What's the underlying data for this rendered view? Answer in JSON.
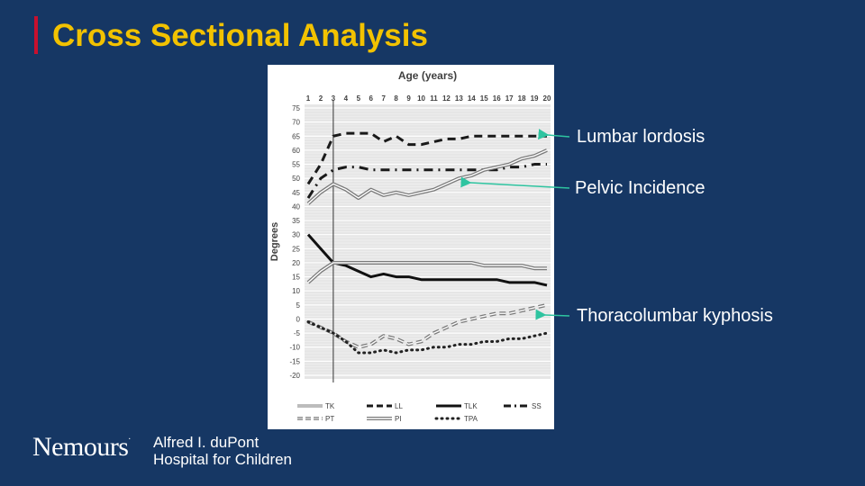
{
  "slide": {
    "title": "Cross Sectional Analysis",
    "accent_color": "#c8102e",
    "title_color": "#f2c200",
    "background": "#163764"
  },
  "callouts": [
    {
      "label": "Lumbar lordosis",
      "arrow_color": "#2ec4a0"
    },
    {
      "label": "Pelvic Incidence",
      "arrow_color": "#2ec4a0"
    },
    {
      "label": "Thoracolumbar kyphosis",
      "arrow_color": "#2ec4a0"
    }
  ],
  "logo": {
    "name": "Nemours",
    "trademark": ".",
    "line1": "Alfred I. duPont",
    "line2": "Hospital for Children"
  },
  "chart_data": {
    "type": "line",
    "title": "Age (years)",
    "xlabel": "Age (years)",
    "ylabel": "Degrees",
    "x": [
      1,
      2,
      3,
      4,
      5,
      6,
      7,
      8,
      9,
      10,
      11,
      12,
      13,
      14,
      15,
      16,
      17,
      18,
      19,
      20
    ],
    "xlim": [
      1,
      20
    ],
    "ylim": [
      -20,
      75
    ],
    "yticks": [
      75,
      70,
      65,
      60,
      55,
      50,
      45,
      40,
      35,
      30,
      25,
      20,
      15,
      10,
      5,
      0,
      -5,
      -10,
      -15,
      -20
    ],
    "grid": true,
    "reference_x": 3,
    "series": [
      {
        "name": "LL",
        "style": "dash",
        "values": [
          48,
          55,
          65,
          66,
          66,
          66,
          63,
          65,
          62,
          62,
          63,
          64,
          64,
          65,
          65,
          65,
          65,
          65,
          65,
          65
        ]
      },
      {
        "name": "SS",
        "style": "dashdot",
        "values": [
          43,
          50,
          53,
          54,
          54,
          53,
          53,
          53,
          53,
          53,
          53,
          53,
          53,
          53,
          53,
          53,
          54,
          54,
          55,
          55
        ]
      },
      {
        "name": "PI",
        "style": "double",
        "values": [
          41,
          45,
          48,
          46,
          43,
          46,
          44,
          45,
          44,
          45,
          46,
          48,
          50,
          51,
          53,
          54,
          55,
          57,
          58,
          60
        ]
      },
      {
        "name": "TLK",
        "style": "solid",
        "values": [
          30,
          25,
          20,
          19,
          17,
          15,
          16,
          15,
          15,
          14,
          14,
          14,
          14,
          14,
          14,
          14,
          13,
          13,
          13,
          12
        ]
      },
      {
        "name": "TK",
        "style": "double",
        "values": [
          13,
          17,
          20,
          20,
          20,
          20,
          20,
          20,
          20,
          20,
          20,
          20,
          20,
          20,
          19,
          19,
          19,
          19,
          18,
          18
        ]
      },
      {
        "name": "PT",
        "style": "double",
        "values": [
          -1,
          -3,
          -5,
          -8,
          -10,
          -9,
          -6,
          -7,
          -9,
          -8,
          -5,
          -3,
          -1,
          0,
          1,
          2,
          2,
          3,
          4,
          5
        ]
      },
      {
        "name": "TPA",
        "style": "dot",
        "values": [
          -1,
          -3,
          -5,
          -8,
          -12,
          -12,
          -11,
          -12,
          -11,
          -11,
          -10,
          -10,
          -9,
          -9,
          -8,
          -8,
          -7,
          -7,
          -6,
          -5
        ]
      }
    ],
    "legend": [
      {
        "name": "TK",
        "style": "double-thin"
      },
      {
        "name": "LL",
        "style": "dash"
      },
      {
        "name": "TLK",
        "style": "solid"
      },
      {
        "name": "SS",
        "style": "dashdot"
      },
      {
        "name": "PT",
        "style": "double-dash"
      },
      {
        "name": "PI",
        "style": "double"
      },
      {
        "name": "TPA",
        "style": "dot"
      }
    ]
  }
}
